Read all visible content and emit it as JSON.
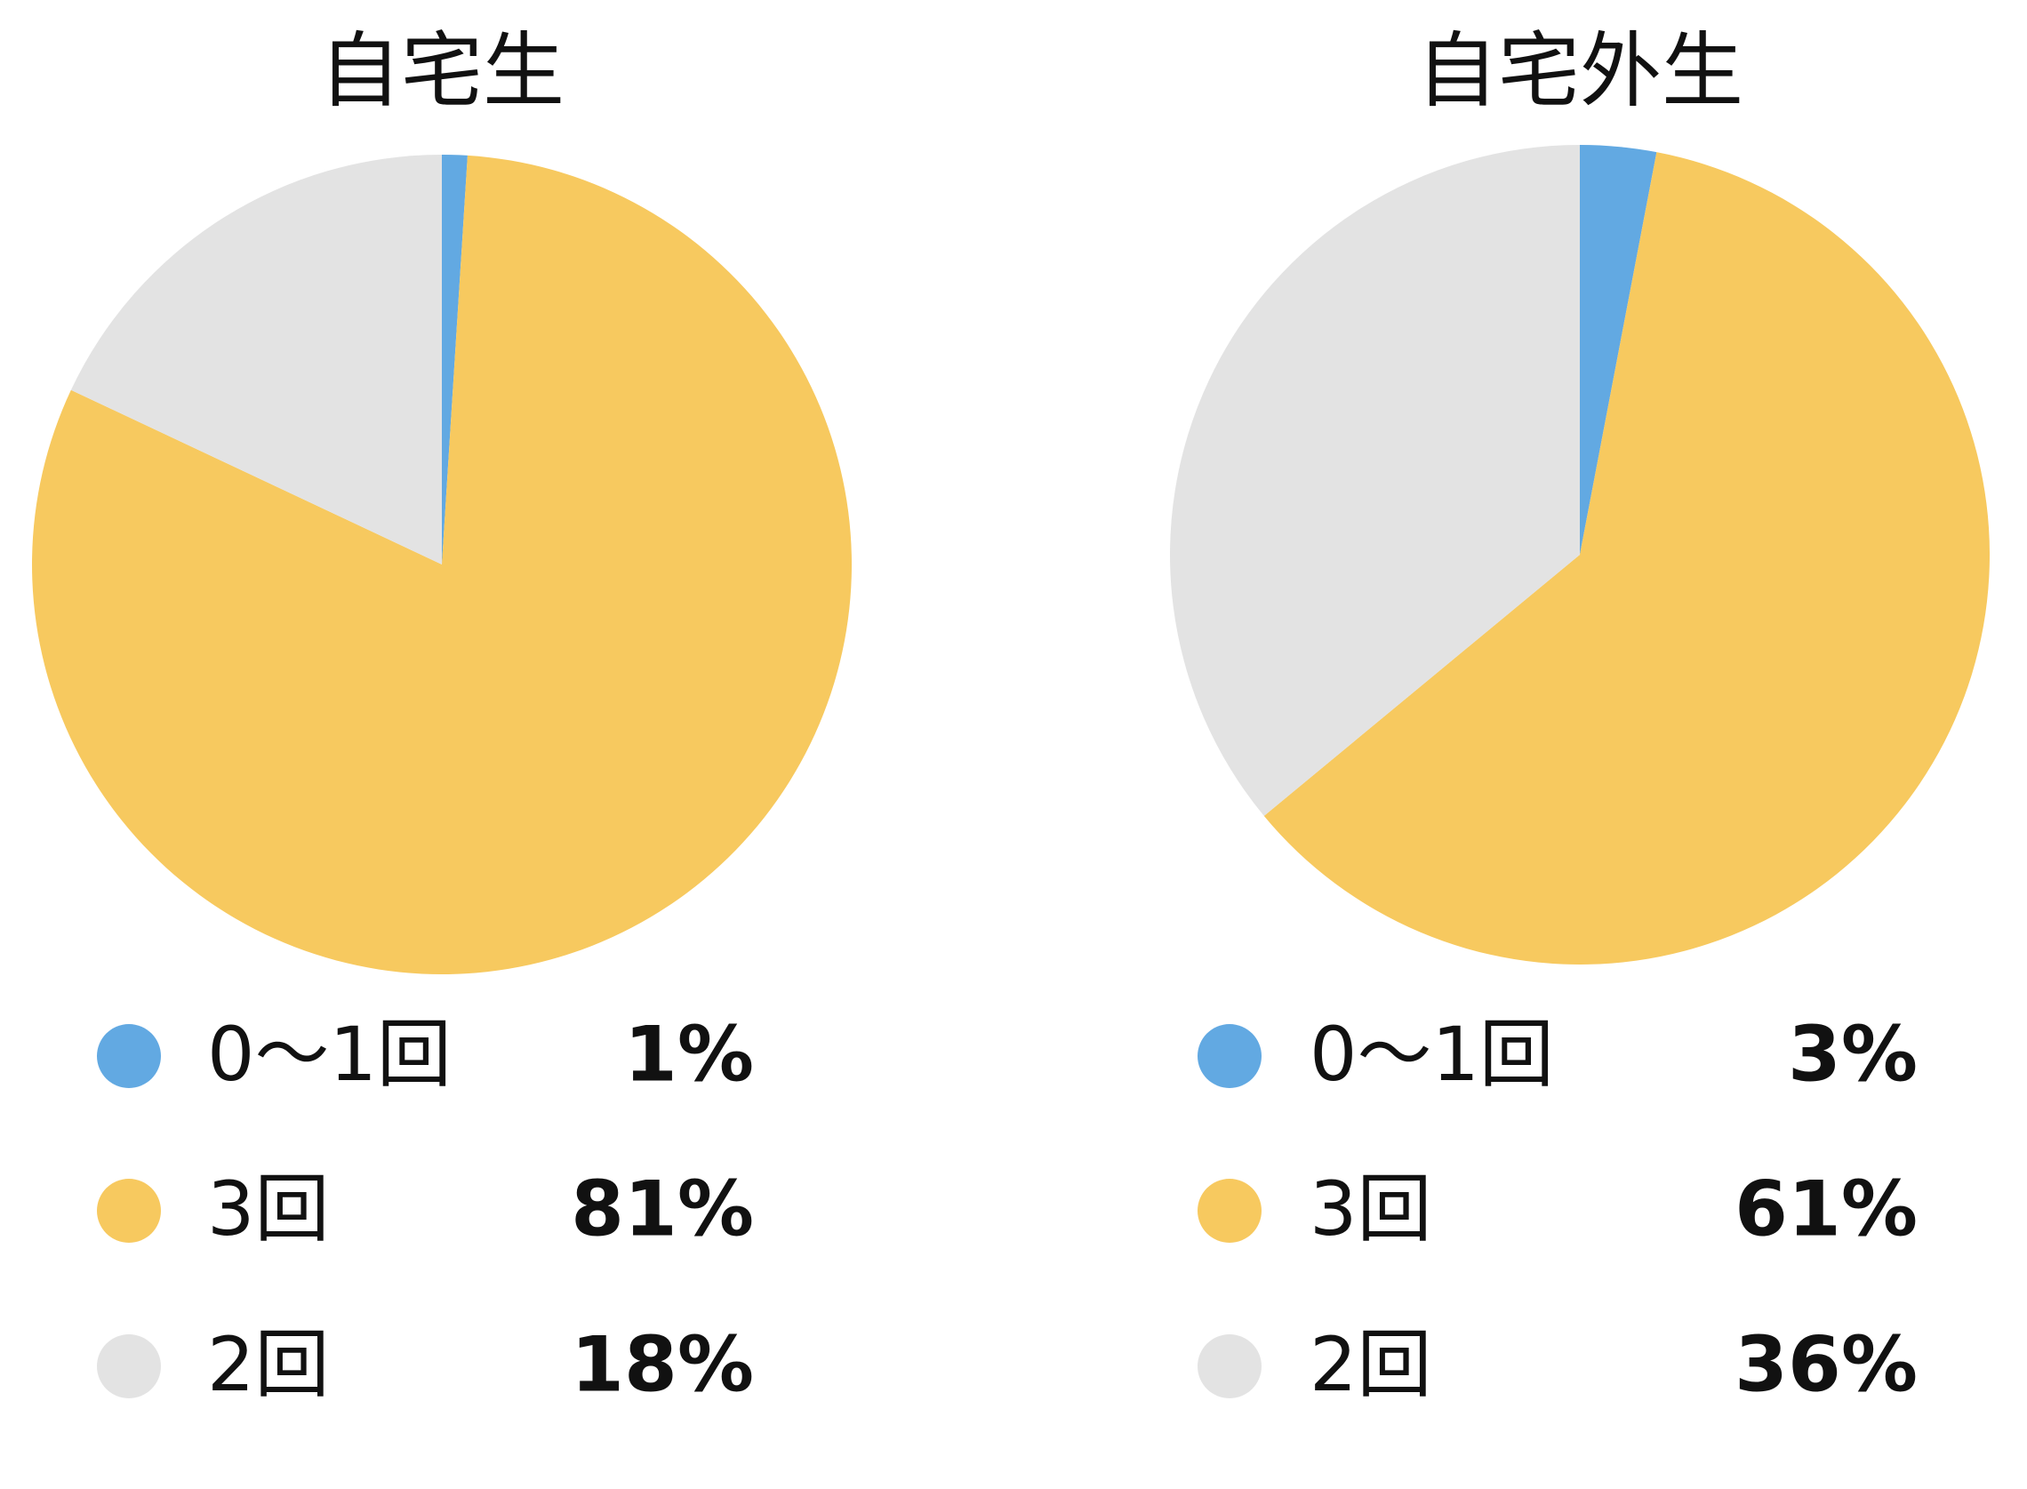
{
  "chart_data": [
    {
      "type": "pie",
      "title": "自宅生",
      "categories": [
        "0〜1回",
        "3回",
        "2回"
      ],
      "values": [
        1,
        81,
        18
      ],
      "value_labels": [
        "1%",
        "81%",
        "18%"
      ],
      "colors": [
        "#62a9e2",
        "#f7c95f",
        "#e3e3e3"
      ]
    },
    {
      "type": "pie",
      "title": "自宅外生",
      "categories": [
        "0〜1回",
        "3回",
        "2回"
      ],
      "values": [
        3,
        61,
        36
      ],
      "value_labels": [
        "3%",
        "61%",
        "36%"
      ],
      "colors": [
        "#62a9e2",
        "#f7c95f",
        "#e3e3e3"
      ]
    }
  ]
}
